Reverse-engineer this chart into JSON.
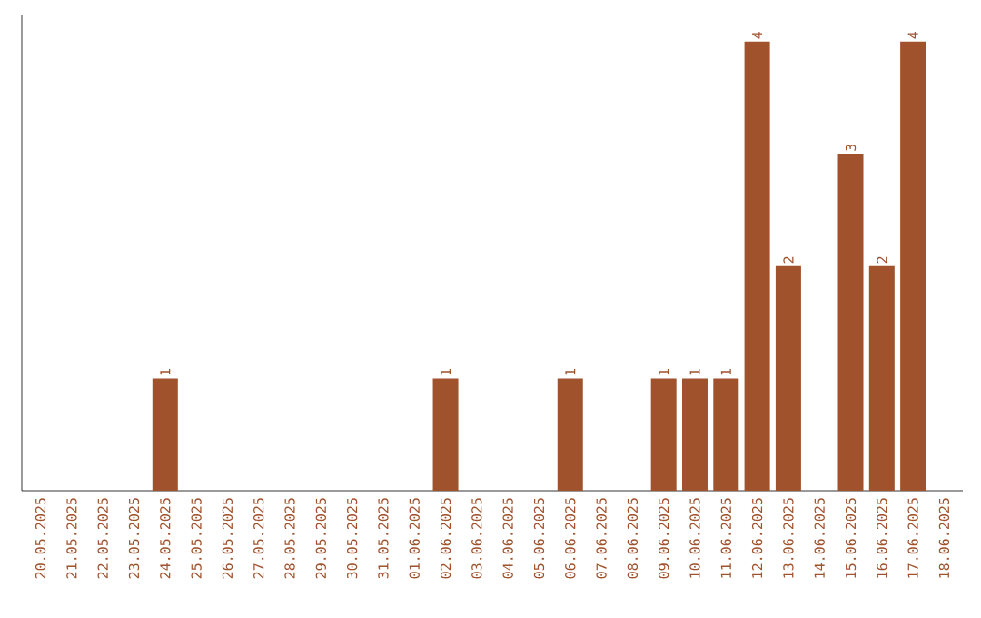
{
  "chart_data": {
    "type": "bar",
    "categories": [
      "20.05.2025",
      "21.05.2025",
      "22.05.2025",
      "23.05.2025",
      "24.05.2025",
      "25.05.2025",
      "26.05.2025",
      "27.05.2025",
      "28.05.2025",
      "29.05.2025",
      "30.05.2025",
      "31.05.2025",
      "01.06.2025",
      "02.06.2025",
      "03.06.2025",
      "04.06.2025",
      "05.06.2025",
      "06.06.2025",
      "07.06.2025",
      "08.06.2025",
      "09.06.2025",
      "10.06.2025",
      "11.06.2025",
      "12.06.2025",
      "13.06.2025",
      "14.06.2025",
      "15.06.2025",
      "16.06.2025",
      "17.06.2025",
      "18.06.2025"
    ],
    "values": [
      0,
      0,
      0,
      0,
      1,
      0,
      0,
      0,
      0,
      0,
      0,
      0,
      0,
      1,
      0,
      0,
      0,
      1,
      0,
      0,
      1,
      1,
      1,
      4,
      2,
      0,
      3,
      2,
      4,
      0
    ],
    "value_labels": [
      null,
      null,
      null,
      null,
      "1",
      null,
      null,
      null,
      null,
      null,
      null,
      null,
      null,
      "1",
      null,
      null,
      null,
      "1",
      null,
      null,
      "1",
      "1",
      "1",
      "4",
      "2",
      null,
      "3",
      "2",
      "4",
      null
    ],
    "color": "#a0522d",
    "tick_labels": "x",
    "grid": false
  }
}
